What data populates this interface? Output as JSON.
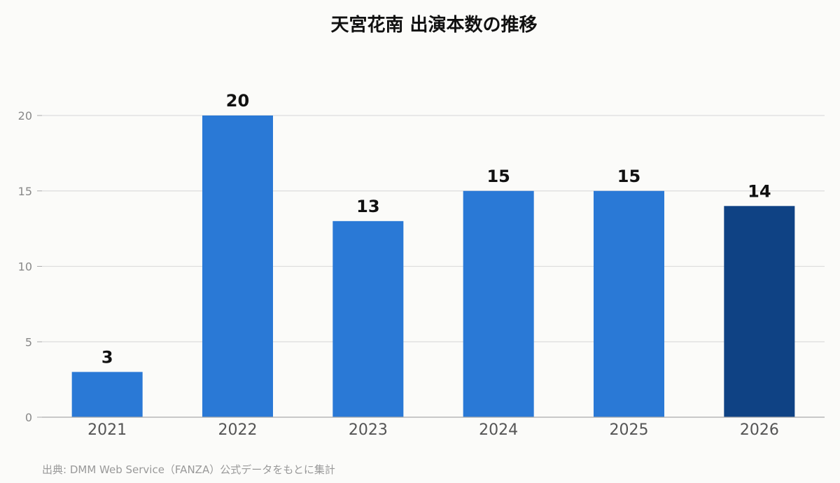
{
  "chart_data": {
    "type": "bar",
    "title": "天宮花南 出演本数の推移",
    "categories": [
      "2021",
      "2022",
      "2023",
      "2024",
      "2025",
      "2026"
    ],
    "values": [
      3,
      20,
      13,
      15,
      15,
      14
    ],
    "xlabel": "",
    "ylabel": "",
    "ylim": [
      0,
      20
    ],
    "yticks": [
      0,
      5,
      10,
      15,
      20
    ],
    "grid": true,
    "legend": "none",
    "highlight_index": 5,
    "colors": {
      "bar": "#2a79d6",
      "highlight": "#0f4284",
      "grid": "#dddddd",
      "axis": "#aaaaaa",
      "background": "#fbfbf9"
    }
  },
  "footer": {
    "source": "出典: DMM Web Service（FANZA）公式データをもとに集計"
  }
}
